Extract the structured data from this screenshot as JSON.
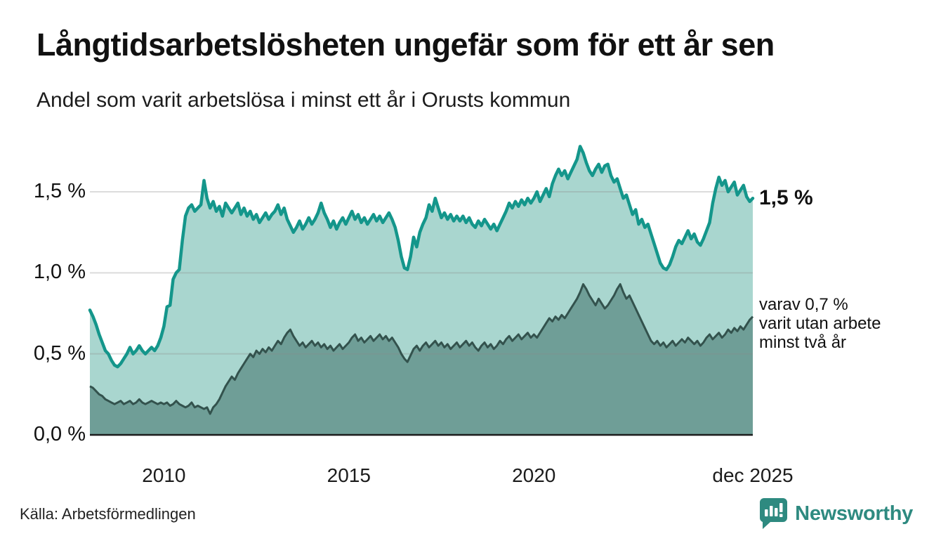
{
  "header": {
    "title": "Långtidsarbetslösheten ungefär som för ett år sen",
    "subtitle": "Andel som varit arbetslösa i minst ett år i Orusts kommun"
  },
  "chart_data": {
    "type": "area",
    "title": "Andel som varit arbetslösa i minst ett år i Orusts kommun",
    "unit": "%",
    "x_start": 2008.0,
    "x_end": 2025.917,
    "ylim": [
      0,
      1.85
    ],
    "grid": "horizontal",
    "colors": {
      "line_total": "#14968b",
      "fill_total": "#a9d6cf",
      "line_subset": "#33524d",
      "fill_subset": "#6f9e97",
      "gridline": "#8a8a8a",
      "axis": "#1c1c1c"
    },
    "y_ticks": [
      {
        "label": "0,0 %",
        "value": 0.0
      },
      {
        "label": "0,5 %",
        "value": 0.5
      },
      {
        "label": "1,0 %",
        "value": 1.0
      },
      {
        "label": "1,5 %",
        "value": 1.5
      }
    ],
    "x_ticks": [
      {
        "label": "2010",
        "year": 2010
      },
      {
        "label": "2015",
        "year": 2015
      },
      {
        "label": "2020",
        "year": 2020
      },
      {
        "label": "dec 2025",
        "year": 2025.917
      }
    ],
    "series": [
      {
        "name": "Arbetslösa minst ett år",
        "end_value_label": "1,5 %",
        "values": [
          0.77,
          0.73,
          0.68,
          0.62,
          0.57,
          0.52,
          0.5,
          0.46,
          0.43,
          0.42,
          0.44,
          0.47,
          0.5,
          0.54,
          0.5,
          0.52,
          0.55,
          0.52,
          0.5,
          0.52,
          0.54,
          0.52,
          0.55,
          0.6,
          0.67,
          0.79,
          0.8,
          0.96,
          1.0,
          1.02,
          1.2,
          1.35,
          1.4,
          1.42,
          1.38,
          1.4,
          1.42,
          1.57,
          1.46,
          1.4,
          1.44,
          1.38,
          1.41,
          1.35,
          1.43,
          1.4,
          1.37,
          1.4,
          1.43,
          1.36,
          1.4,
          1.35,
          1.38,
          1.33,
          1.36,
          1.31,
          1.34,
          1.37,
          1.33,
          1.36,
          1.38,
          1.42,
          1.36,
          1.4,
          1.33,
          1.29,
          1.25,
          1.28,
          1.32,
          1.27,
          1.3,
          1.34,
          1.3,
          1.33,
          1.37,
          1.43,
          1.37,
          1.33,
          1.28,
          1.32,
          1.27,
          1.31,
          1.34,
          1.3,
          1.34,
          1.38,
          1.33,
          1.36,
          1.31,
          1.34,
          1.3,
          1.33,
          1.36,
          1.32,
          1.35,
          1.31,
          1.34,
          1.37,
          1.33,
          1.28,
          1.2,
          1.1,
          1.03,
          1.02,
          1.1,
          1.22,
          1.16,
          1.25,
          1.3,
          1.34,
          1.42,
          1.38,
          1.46,
          1.4,
          1.34,
          1.37,
          1.33,
          1.36,
          1.32,
          1.35,
          1.32,
          1.35,
          1.31,
          1.34,
          1.3,
          1.28,
          1.32,
          1.29,
          1.33,
          1.3,
          1.27,
          1.3,
          1.26,
          1.3,
          1.34,
          1.38,
          1.43,
          1.4,
          1.44,
          1.41,
          1.45,
          1.42,
          1.46,
          1.43,
          1.46,
          1.5,
          1.44,
          1.48,
          1.52,
          1.47,
          1.55,
          1.6,
          1.64,
          1.6,
          1.63,
          1.58,
          1.62,
          1.66,
          1.7,
          1.78,
          1.74,
          1.68,
          1.63,
          1.6,
          1.64,
          1.67,
          1.62,
          1.66,
          1.67,
          1.6,
          1.56,
          1.58,
          1.52,
          1.46,
          1.48,
          1.42,
          1.36,
          1.39,
          1.3,
          1.33,
          1.28,
          1.3,
          1.24,
          1.18,
          1.12,
          1.06,
          1.03,
          1.02,
          1.05,
          1.1,
          1.16,
          1.2,
          1.18,
          1.22,
          1.26,
          1.21,
          1.24,
          1.19,
          1.17,
          1.21,
          1.26,
          1.31,
          1.43,
          1.52,
          1.59,
          1.54,
          1.57,
          1.5,
          1.53,
          1.56,
          1.48,
          1.51,
          1.54,
          1.47,
          1.44,
          1.46
        ]
      },
      {
        "name": "Varav arbetslösa minst två år",
        "end_value_label": "varav 0,7 %",
        "values": [
          0.3,
          0.29,
          0.27,
          0.25,
          0.24,
          0.22,
          0.21,
          0.2,
          0.19,
          0.2,
          0.21,
          0.19,
          0.2,
          0.21,
          0.19,
          0.2,
          0.22,
          0.2,
          0.19,
          0.2,
          0.21,
          0.2,
          0.19,
          0.2,
          0.19,
          0.2,
          0.18,
          0.19,
          0.21,
          0.19,
          0.18,
          0.17,
          0.18,
          0.2,
          0.17,
          0.18,
          0.17,
          0.16,
          0.17,
          0.13,
          0.17,
          0.19,
          0.22,
          0.26,
          0.3,
          0.33,
          0.36,
          0.34,
          0.38,
          0.41,
          0.44,
          0.47,
          0.5,
          0.48,
          0.52,
          0.5,
          0.53,
          0.51,
          0.54,
          0.52,
          0.55,
          0.58,
          0.56,
          0.6,
          0.63,
          0.65,
          0.61,
          0.58,
          0.55,
          0.57,
          0.54,
          0.56,
          0.58,
          0.55,
          0.57,
          0.54,
          0.56,
          0.53,
          0.55,
          0.52,
          0.54,
          0.56,
          0.53,
          0.55,
          0.57,
          0.6,
          0.62,
          0.58,
          0.6,
          0.57,
          0.59,
          0.61,
          0.58,
          0.6,
          0.62,
          0.59,
          0.61,
          0.58,
          0.6,
          0.57,
          0.54,
          0.5,
          0.47,
          0.45,
          0.49,
          0.53,
          0.55,
          0.52,
          0.55,
          0.57,
          0.54,
          0.56,
          0.58,
          0.55,
          0.57,
          0.54,
          0.56,
          0.53,
          0.55,
          0.57,
          0.54,
          0.56,
          0.58,
          0.55,
          0.57,
          0.54,
          0.52,
          0.55,
          0.57,
          0.54,
          0.56,
          0.53,
          0.55,
          0.58,
          0.56,
          0.59,
          0.61,
          0.58,
          0.6,
          0.62,
          0.59,
          0.61,
          0.63,
          0.6,
          0.62,
          0.6,
          0.63,
          0.66,
          0.69,
          0.72,
          0.7,
          0.73,
          0.71,
          0.74,
          0.72,
          0.75,
          0.78,
          0.81,
          0.84,
          0.88,
          0.93,
          0.9,
          0.86,
          0.83,
          0.8,
          0.84,
          0.81,
          0.78,
          0.8,
          0.83,
          0.86,
          0.9,
          0.93,
          0.88,
          0.84,
          0.86,
          0.82,
          0.78,
          0.74,
          0.7,
          0.66,
          0.62,
          0.58,
          0.56,
          0.58,
          0.55,
          0.57,
          0.54,
          0.56,
          0.58,
          0.55,
          0.57,
          0.59,
          0.57,
          0.6,
          0.58,
          0.56,
          0.58,
          0.55,
          0.57,
          0.6,
          0.62,
          0.59,
          0.61,
          0.63,
          0.6,
          0.62,
          0.65,
          0.63,
          0.66,
          0.64,
          0.67,
          0.65,
          0.68,
          0.71,
          0.73
        ]
      }
    ]
  },
  "annotations": {
    "total_label": "1,5 %",
    "subset_lines": [
      "varav 0,7 %",
      "varit utan arbete",
      "minst två år"
    ]
  },
  "footer": {
    "source": "Källa: Arbetsförmedlingen",
    "brand": "Newsworthy",
    "brand_color": "#2e8a80"
  }
}
